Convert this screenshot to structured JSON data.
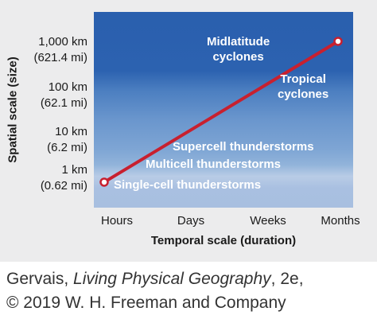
{
  "chart_data": {
    "type": "line",
    "xlabel": "Temporal scale (duration)",
    "ylabel": "Spatial scale (size)",
    "x_ticks": [
      "Hours",
      "Days",
      "Weeks",
      "Months"
    ],
    "y_ticks": [
      {
        "primary": "1 km",
        "secondary": "(0.62 mi)"
      },
      {
        "primary": "10 km",
        "secondary": "(6.2 mi)"
      },
      {
        "primary": "100 km",
        "secondary": "(62.1 mi)"
      },
      {
        "primary": "1,000 km",
        "secondary": "(621.4 mi)"
      }
    ],
    "y_scale": "log",
    "line_color": "#c8202f",
    "series": [
      {
        "x": [
          "Hours",
          "Months"
        ],
        "y_km": [
          0.62,
          1414
        ]
      }
    ],
    "annotations": [
      {
        "lines": [
          "Midlatitude",
          "cyclones"
        ]
      },
      {
        "lines": [
          "Tropical",
          "cyclones"
        ]
      },
      {
        "lines": [
          "Supercell thunderstorms"
        ]
      },
      {
        "lines": [
          "Multicell thunderstorms"
        ]
      },
      {
        "lines": [
          "Single-cell thunderstorms"
        ]
      }
    ]
  },
  "credit": {
    "author": "Gervais,",
    "book_title": "Living Physical Geography",
    "edition": ", 2e,",
    "copyright": "© 2019 W. H. Freeman and Company"
  },
  "colors": {
    "plot_top": "#2a5fae",
    "plot_bottom": "#a8bfe0",
    "figure_background": "#ececed",
    "label_text": "#ffffff"
  }
}
